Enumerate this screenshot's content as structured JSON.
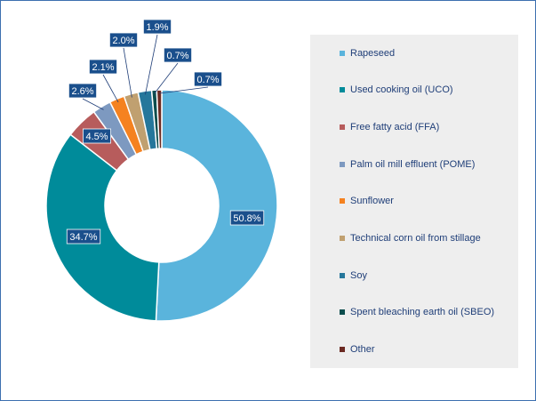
{
  "chart_data": {
    "type": "pie",
    "style": "donut",
    "categories": [
      "Rapeseed",
      "Used cooking oil (UCO)",
      "Free fatty acid (FFA)",
      "Palm oil mill effluent (POME)",
      "Sunflower",
      "Technical corn oil from stillage",
      "Soy",
      "Spent bleaching earth oil (SBEO)",
      "Other"
    ],
    "values": [
      50.8,
      34.7,
      4.5,
      2.6,
      2.1,
      2.0,
      1.9,
      0.7,
      0.7
    ],
    "data_labels": [
      "50.8%",
      "34.7%",
      "4.5%",
      "2.6%",
      "2.1%",
      "2.0%",
      "1.9%",
      "0.7%",
      "0.7%"
    ],
    "colors": [
      "#5ab4dc",
      "#008b9a",
      "#b75c5c",
      "#7d99c0",
      "#f58220",
      "#c0a070",
      "#26779b",
      "#0b4d4d",
      "#6b2a22"
    ],
    "label_box_color": "#1a4f8c",
    "legend_position": "right",
    "title": "",
    "start_angle_deg": 0,
    "direction": "clockwise"
  }
}
